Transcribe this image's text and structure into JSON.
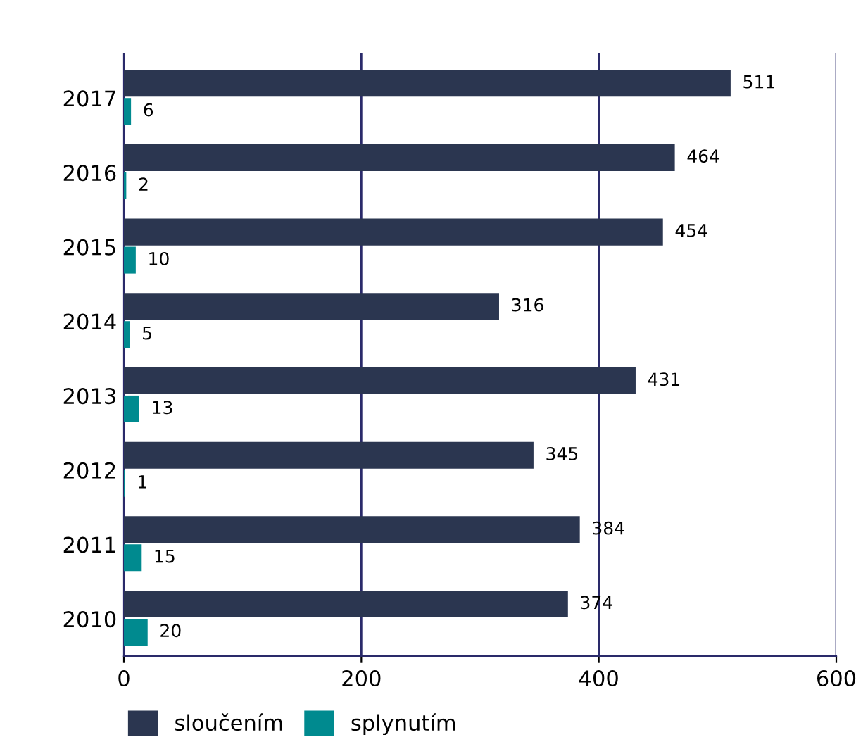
{
  "chart_data": {
    "type": "bar",
    "orientation": "horizontal",
    "categories": [
      "2017",
      "2016",
      "2015",
      "2014",
      "2013",
      "2012",
      "2011",
      "2010"
    ],
    "series": [
      {
        "name": "sloučením",
        "color": "#2b3650",
        "values": [
          511,
          464,
          454,
          316,
          431,
          345,
          384,
          374
        ]
      },
      {
        "name": "splynutím",
        "color": "#008a8f",
        "values": [
          6,
          2,
          10,
          5,
          13,
          1,
          15,
          20
        ]
      }
    ],
    "xlim": [
      0,
      600
    ],
    "xticks": [
      0,
      200,
      400,
      600
    ],
    "grid": "x",
    "legend": "bottom",
    "data_labels": true
  }
}
